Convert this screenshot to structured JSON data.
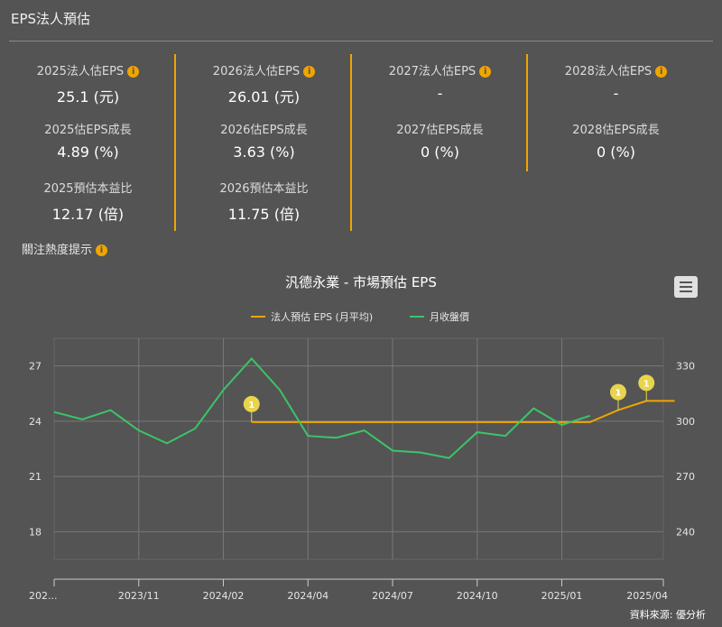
{
  "header": {
    "title": "EPS法人預估"
  },
  "stats": [
    {
      "items": [
        {
          "label": "2025法人估EPS",
          "value": "25.1 (元)",
          "info": true
        },
        {
          "label": "2025估EPS成長",
          "value": "4.89 (%)"
        },
        {
          "label": "2025預估本益比",
          "value": "12.17 (倍)"
        }
      ]
    },
    {
      "items": [
        {
          "label": "2026法人估EPS",
          "value": "26.01 (元)",
          "info": true
        },
        {
          "label": "2026估EPS成長",
          "value": "3.63 (%)"
        },
        {
          "label": "2026預估本益比",
          "value": "11.75 (倍)"
        }
      ]
    },
    {
      "items": [
        {
          "label": "2027法人估EPS",
          "value": "-",
          "info": true
        },
        {
          "label": "2027估EPS成長",
          "value": "0 (%)"
        }
      ]
    },
    {
      "items": [
        {
          "label": "2028法人估EPS",
          "value": "-",
          "info": true
        },
        {
          "label": "2028估EPS成長",
          "value": "0 (%)"
        }
      ]
    }
  ],
  "heat": {
    "label": "關注熱度提示"
  },
  "source": "資料來源: 優分析",
  "colors": {
    "accent": "#f0a500",
    "price_line": "#3cc468",
    "grid": "#777777",
    "flag": "#e8d44d"
  },
  "icons": {
    "info": "info-icon",
    "menu": "hamburger-menu-icon",
    "flag": "flag-marker-icon"
  },
  "chart_data": {
    "type": "line",
    "title": "汎德永業 - 市場預估 EPS",
    "legend_position": "top-center",
    "grid": true,
    "x_tick_labels": [
      "202...",
      "2023/11",
      "2024/02",
      "2024/04",
      "2024/07",
      "2024/10",
      "2025/01",
      "2025/04"
    ],
    "y_left": {
      "ticks": [
        18,
        21,
        24,
        27
      ],
      "range": [
        16.5,
        28.5
      ]
    },
    "y_right": {
      "ticks": [
        240,
        270,
        300,
        330
      ],
      "range": [
        225,
        345
      ]
    },
    "series": [
      {
        "name": "法人預估 EPS (月平均)",
        "axis": "left",
        "color": "#f0a500",
        "points": [
          [
            7,
            23.95
          ],
          [
            19,
            23.95
          ],
          [
            20,
            24.6
          ],
          [
            21,
            25.1
          ],
          [
            22,
            25.1
          ]
        ],
        "flags": [
          {
            "x": 7,
            "y": 23.95,
            "label": "1"
          },
          {
            "x": 20,
            "y": 24.6,
            "label": "1"
          },
          {
            "x": 21,
            "y": 25.1,
            "label": "1"
          }
        ]
      },
      {
        "name": "月收盤價",
        "axis": "right",
        "color": "#3cc468",
        "points": [
          [
            0,
            305
          ],
          [
            1,
            301
          ],
          [
            2,
            306
          ],
          [
            3,
            295
          ],
          [
            4,
            288
          ],
          [
            5,
            296
          ],
          [
            6,
            317
          ],
          [
            7,
            334
          ],
          [
            8,
            317
          ],
          [
            9,
            292
          ],
          [
            10,
            291
          ],
          [
            11,
            295
          ],
          [
            12,
            284
          ],
          [
            13,
            283
          ],
          [
            14,
            280
          ],
          [
            15,
            294
          ],
          [
            16,
            292
          ],
          [
            17,
            307
          ],
          [
            18,
            298
          ],
          [
            19,
            303
          ]
        ]
      }
    ]
  }
}
